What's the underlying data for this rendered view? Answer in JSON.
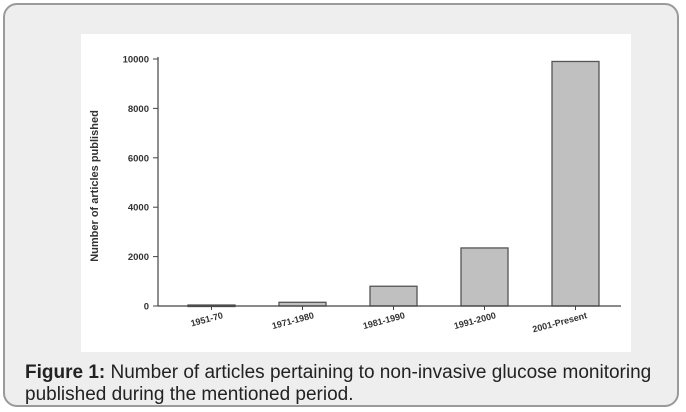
{
  "chart_data": {
    "type": "bar",
    "categories": [
      "1951-70",
      "1971-1980",
      "1981-1990",
      "1991-2000",
      "2001-Present"
    ],
    "values": [
      40,
      150,
      800,
      2350,
      9900
    ],
    "ylabel": "Number of articles published",
    "xlabel": "",
    "ylim": [
      0,
      10000
    ],
    "yticks": [
      0,
      2000,
      4000,
      6000,
      8000,
      10000
    ],
    "grid": false,
    "bar_color": "#c0c0c0",
    "bar_edge_color": "#555555"
  },
  "caption": {
    "lead": "Figure 1:",
    "text": " Number of articles pertaining to non-invasive glucose monitoring published during the mentioned period."
  },
  "colors": {
    "frame_bg": "#eeeeee",
    "frame_border": "#9a9a9a",
    "panel_bg": "#ffffff"
  }
}
